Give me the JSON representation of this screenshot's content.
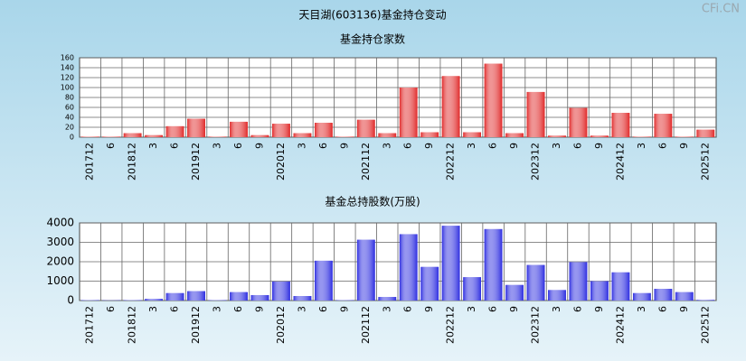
{
  "title": "天目湖(603136)基金持仓变动",
  "watermark": "CFi.CN",
  "chart_data": [
    {
      "type": "bar",
      "title": "基金持仓家数",
      "color": "#e02a2a",
      "grid": true,
      "categories": [
        "201712",
        "6",
        "201812",
        "3",
        "6",
        "201912",
        "3",
        "6",
        "9",
        "202012",
        "3",
        "6",
        "9",
        "202112",
        "3",
        "6",
        "9",
        "202212",
        "3",
        "6",
        "9",
        "202312",
        "3",
        "6",
        "9",
        "202412",
        "3",
        "6",
        "9",
        "202512"
      ],
      "values": [
        1,
        1,
        8,
        4,
        22,
        37,
        1,
        31,
        4,
        27,
        8,
        29,
        1,
        35,
        8,
        100,
        10,
        123,
        10,
        148,
        8,
        91,
        3,
        59,
        3,
        49,
        1,
        47,
        1,
        15
      ],
      "ylim": [
        0,
        160
      ],
      "yticks": [
        0,
        20,
        40,
        60,
        80,
        100,
        120,
        140,
        160
      ]
    },
    {
      "type": "bar",
      "title": "基金总持股数(万股)",
      "color": "#2e2ee0",
      "grid": true,
      "categories": [
        "201712",
        "6",
        "201812",
        "3",
        "6",
        "201912",
        "3",
        "6",
        "9",
        "202012",
        "3",
        "6",
        "9",
        "202112",
        "3",
        "6",
        "9",
        "202212",
        "3",
        "6",
        "9",
        "202312",
        "3",
        "6",
        "9",
        "202412",
        "3",
        "6",
        "9",
        "202512"
      ],
      "values": [
        20,
        10,
        20,
        80,
        380,
        480,
        20,
        430,
        280,
        980,
        230,
        2050,
        20,
        3130,
        180,
        3420,
        1730,
        3850,
        1200,
        3680,
        800,
        1830,
        540,
        1980,
        1000,
        1450,
        380,
        600,
        430,
        30
      ],
      "ylim": [
        0,
        4000
      ],
      "yticks": [
        0,
        1000,
        2000,
        3000,
        4000
      ]
    }
  ]
}
